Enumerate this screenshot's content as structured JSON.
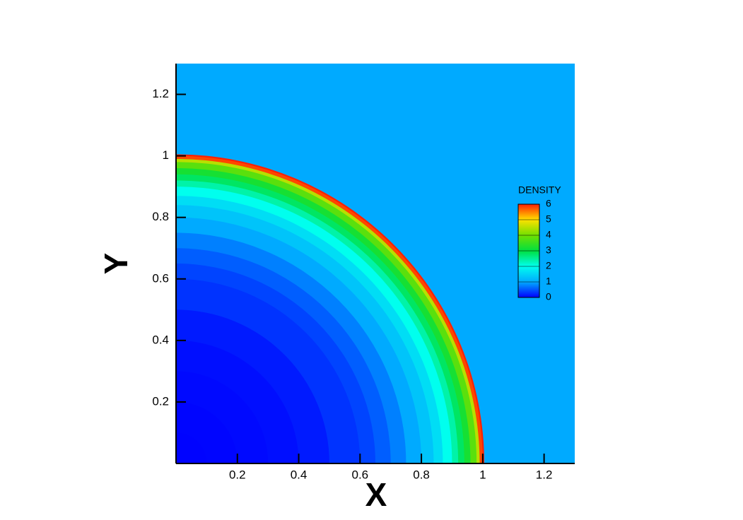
{
  "chart_data": {
    "type": "contour",
    "x_label": "X",
    "y_label": "Y",
    "xlim": [
      0,
      1.3
    ],
    "ylim": [
      0,
      1.3
    ],
    "xticks": [
      0.2,
      0.4,
      0.6,
      0.8,
      1,
      1.2
    ],
    "yticks": [
      0.2,
      0.4,
      0.6,
      0.8,
      1,
      1.2
    ],
    "field": {
      "name": "DENSITY",
      "ambient": 1,
      "r": [
        0.1,
        0.2,
        0.3,
        0.4,
        0.5,
        0.6,
        0.65,
        0.7,
        0.75,
        0.8,
        0.84,
        0.87,
        0.9,
        0.92,
        0.94,
        0.96,
        0.98,
        0.99,
        1.0,
        1.005
      ],
      "values": [
        0.02,
        0.03,
        0.05,
        0.08,
        0.15,
        0.3,
        0.4,
        0.55,
        0.75,
        1.0,
        1.3,
        1.6,
        2.0,
        2.4,
        2.8,
        3.2,
        3.8,
        4.5,
        5.8,
        6.0
      ]
    },
    "colorbar": {
      "ticks": [
        0,
        1,
        2,
        3,
        4,
        5,
        6
      ],
      "colors": [
        "#0000ff",
        "#00aaff",
        "#00ffee",
        "#00e040",
        "#70e000",
        "#ffe000",
        "#ff2000"
      ]
    }
  }
}
